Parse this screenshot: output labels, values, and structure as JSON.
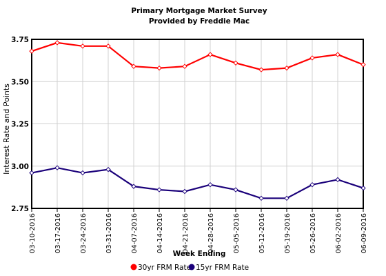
{
  "chart_data": {
    "type": "line",
    "title": "Primary Mortgage Market Survey",
    "subtitle": "Provided by Freddie Mac",
    "xlabel": "Week Ending",
    "ylabel": "Interest Rate and Points",
    "ylim": [
      2.75,
      3.75
    ],
    "yticks": [
      "3.75",
      "3.50",
      "3.25",
      "3.00",
      "2.75"
    ],
    "grid": true,
    "legend_position": "bottom",
    "categories": [
      "03-10-2016",
      "03-17-2016",
      "03-24-2016",
      "03-31-2016",
      "04-07-2016",
      "04-14-2016",
      "04-21-2016",
      "04-28-2016",
      "05-05-2016",
      "05-12-2016",
      "05-19-2016",
      "05-26-2016",
      "06-02-2016",
      "06-09-2016"
    ],
    "series": [
      {
        "name": "30yr FRM Rate",
        "color": "#ff0000",
        "values": [
          3.68,
          3.73,
          3.71,
          3.71,
          3.59,
          3.58,
          3.59,
          3.66,
          3.61,
          3.57,
          3.58,
          3.64,
          3.66,
          3.6
        ]
      },
      {
        "name": "15yr FRM Rate",
        "color": "#1a007a",
        "values": [
          2.96,
          2.99,
          2.96,
          2.98,
          2.88,
          2.86,
          2.85,
          2.89,
          2.86,
          2.81,
          2.81,
          2.89,
          2.92,
          2.87
        ]
      }
    ]
  }
}
